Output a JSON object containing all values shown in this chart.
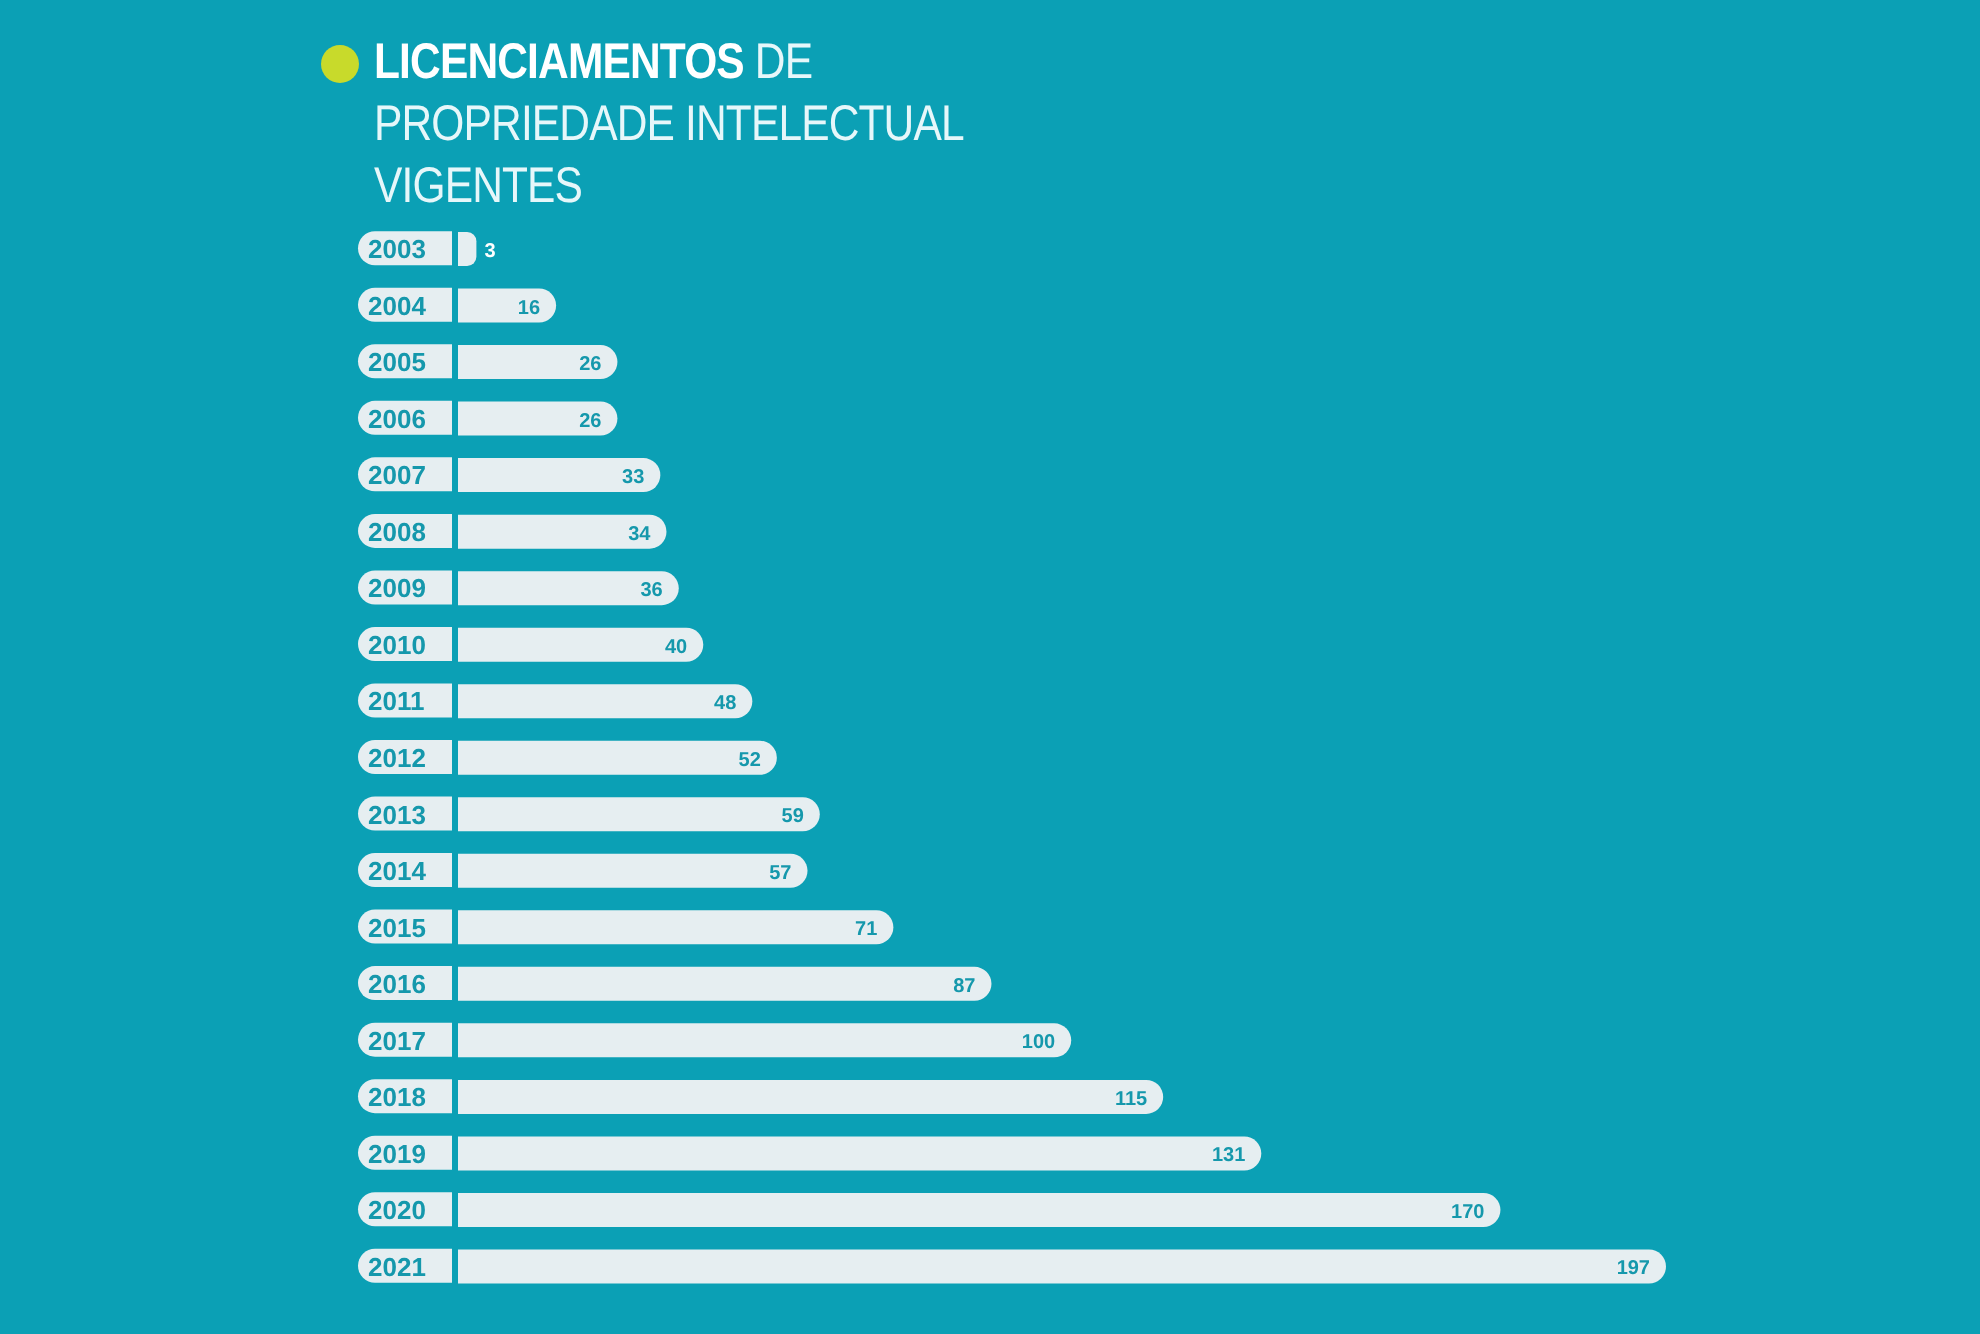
{
  "chart_data": {
    "type": "bar",
    "orientation": "horizontal",
    "title": "LICENCIAMENTOS DE PROPRIEDADE INTELECTUAL VIGENTES",
    "categories": [
      "2003",
      "2004",
      "2005",
      "2006",
      "2007",
      "2008",
      "2009",
      "2010",
      "2011",
      "2012",
      "2013",
      "2014",
      "2015",
      "2016",
      "2017",
      "2018",
      "2019",
      "2020",
      "2021"
    ],
    "values": [
      3,
      16,
      26,
      26,
      33,
      34,
      36,
      40,
      48,
      52,
      59,
      57,
      71,
      87,
      100,
      115,
      131,
      170,
      197
    ],
    "color": "#e6eef1",
    "data_labels": true,
    "grid": false,
    "legend": false
  }
}
